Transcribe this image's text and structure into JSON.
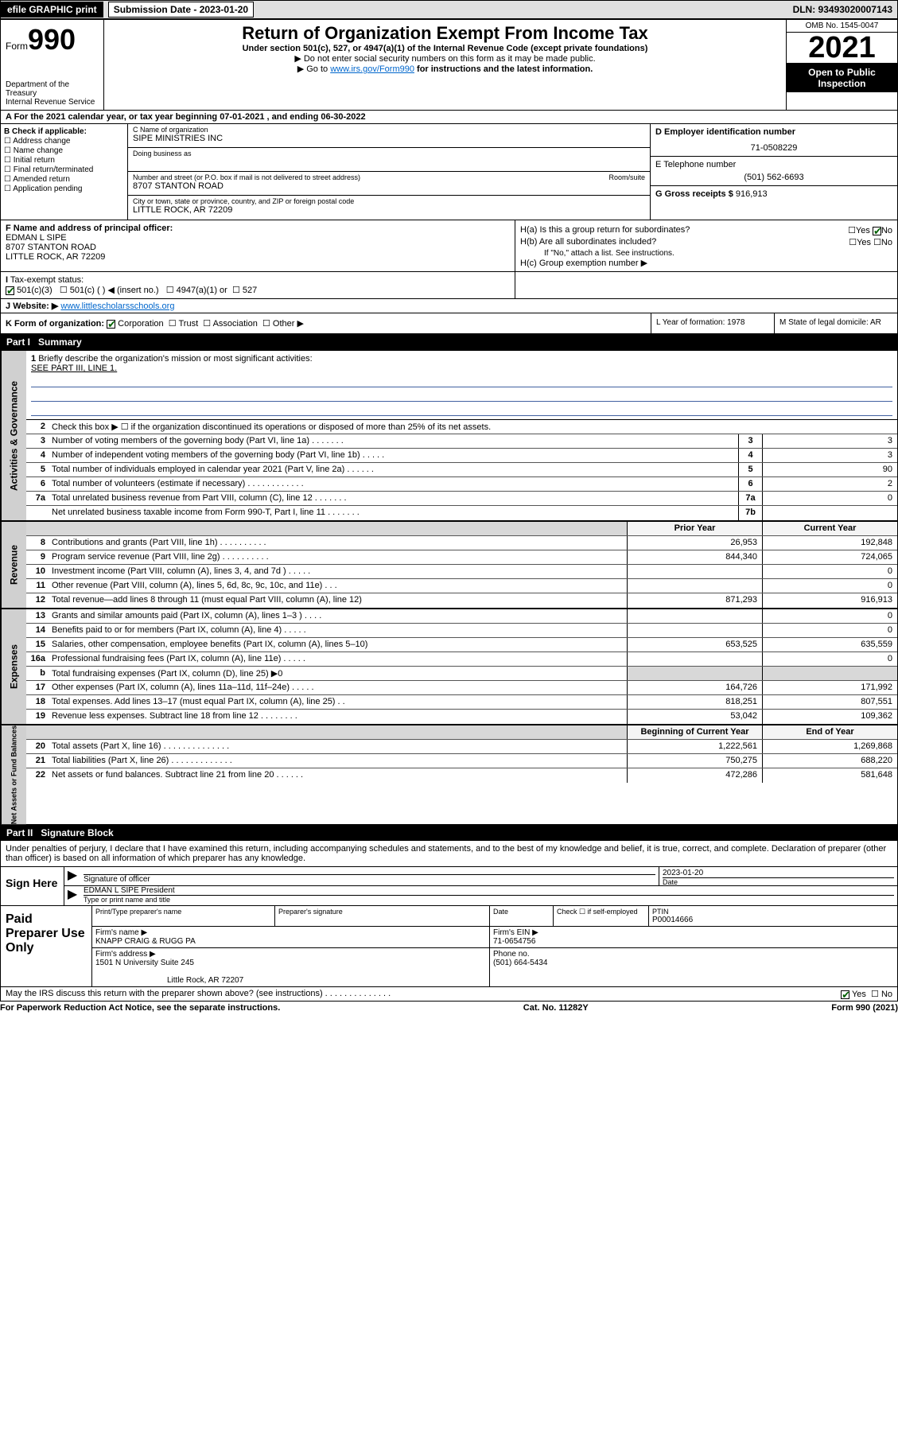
{
  "top_bar": {
    "efile": "efile GRAPHIC print",
    "submission": "Submission Date - 2023-01-20",
    "dln": "DLN: 93493020007143"
  },
  "header": {
    "form_prefix": "Form",
    "form_num": "990",
    "dept": "Department of the Treasury",
    "irs": "Internal Revenue Service",
    "title": "Return of Organization Exempt From Income Tax",
    "subtitle": "Under section 501(c), 527, or 4947(a)(1) of the Internal Revenue Code (except private foundations)",
    "instr1": "▶ Do not enter social security numbers on this form as it may be made public.",
    "instr2_pre": "▶ Go to ",
    "instr2_link": "www.irs.gov/Form990",
    "instr2_post": " for instructions and the latest information.",
    "omb": "OMB No. 1545-0047",
    "year": "2021",
    "open": "Open to Public Inspection"
  },
  "section_a": "A For the 2021 calendar year, or tax year beginning 07-01-2021   , and ending 06-30-2022",
  "col_b": {
    "label": "B Check if applicable:",
    "items": [
      "Address change",
      "Name change",
      "Initial return",
      "Final return/terminated",
      "Amended return",
      "Application pending"
    ]
  },
  "col_c": {
    "name_label": "C Name of organization",
    "name": "SIPE MINISTRIES INC",
    "dba_label": "Doing business as",
    "dba": "",
    "addr_label": "Number and street (or P.O. box if mail is not delivered to street address)",
    "room_label": "Room/suite",
    "addr": "8707 STANTON ROAD",
    "city_label": "City or town, state or province, country, and ZIP or foreign postal code",
    "city": "LITTLE ROCK, AR  72209"
  },
  "col_d": {
    "d_label": "D Employer identification number",
    "d_val": "71-0508229",
    "e_label": "E Telephone number",
    "e_val": "(501) 562-6693",
    "g_label": "G Gross receipts $",
    "g_val": "916,913"
  },
  "row_f": {
    "f_label": "F  Name and address of principal officer:",
    "f_name": "EDMAN L SIPE",
    "f_addr1": "8707 STANTON ROAD",
    "f_addr2": "LITTLE ROCK, AR  72209"
  },
  "row_h": {
    "ha": "H(a)  Is this a group return for subordinates?",
    "ha_no": "No",
    "hb": "H(b)  Are all subordinates included?",
    "hb_note": "If \"No,\" attach a list. See instructions.",
    "hc": "H(c)  Group exemption number ▶"
  },
  "row_i": {
    "i": "I",
    "label": "Tax-exempt status:",
    "opt1": "501(c)(3)",
    "opt2": "501(c) (    ) ◀ (insert no.)",
    "opt3": "4947(a)(1) or",
    "opt4": "527"
  },
  "row_j": {
    "j": "J",
    "label": "Website: ▶",
    "val": "www.littlescholarsschools.org"
  },
  "row_k": {
    "k": "K Form of organization:",
    "corp": "Corporation",
    "trust": "Trust",
    "assoc": "Association",
    "other": "Other ▶",
    "l": "L Year of formation: 1978",
    "m": "M State of legal domicile: AR"
  },
  "part1": {
    "title": "Part I",
    "name": "Summary",
    "q1": "Briefly describe the organization's mission or most significant activities:",
    "q1_val": "SEE PART III, LINE 1.",
    "q2": "Check this box ▶ ☐  if the organization discontinued its operations or disposed of more than 25% of its net assets.",
    "headers": {
      "prior": "Prior Year",
      "curr": "Current Year",
      "begin": "Beginning of Current Year",
      "end": "End of Year"
    },
    "rows_gov": [
      {
        "n": "3",
        "d": "Number of voting members of the governing body (Part VI, line 1a)   .   .   .   .   .   .   .",
        "box": "3",
        "v": "3"
      },
      {
        "n": "4",
        "d": "Number of independent voting members of the governing body (Part VI, line 1b)  .   .   .   .   .",
        "box": "4",
        "v": "3"
      },
      {
        "n": "5",
        "d": "Total number of individuals employed in calendar year 2021 (Part V, line 2a)   .   .   .   .   .   .",
        "box": "5",
        "v": "90"
      },
      {
        "n": "6",
        "d": "Total number of volunteers (estimate if necessary)   .   .   .   .   .   .   .   .   .   .   .   .",
        "box": "6",
        "v": "2"
      },
      {
        "n": "7a",
        "d": "Total unrelated business revenue from Part VIII, column (C), line 12   .   .   .   .   .   .   .",
        "box": "7a",
        "v": "0"
      },
      {
        "n": "",
        "d": "Net unrelated business taxable income from Form 990-T, Part I, line 11   .   .   .   .   .   .   .",
        "box": "7b",
        "v": ""
      }
    ],
    "rows_rev": [
      {
        "n": "8",
        "d": "Contributions and grants (Part VIII, line 1h)   .   .   .   .   .   .   .   .   .   .",
        "p": "26,953",
        "c": "192,848"
      },
      {
        "n": "9",
        "d": "Program service revenue (Part VIII, line 2g)   .   .   .   .   .   .   .   .   .   .",
        "p": "844,340",
        "c": "724,065"
      },
      {
        "n": "10",
        "d": "Investment income (Part VIII, column (A), lines 3, 4, and 7d )   .   .   .   .   .",
        "p": "",
        "c": "0"
      },
      {
        "n": "11",
        "d": "Other revenue (Part VIII, column (A), lines 5, 6d, 8c, 9c, 10c, and 11e)   .   .   .",
        "p": "",
        "c": "0"
      },
      {
        "n": "12",
        "d": "Total revenue—add lines 8 through 11 (must equal Part VIII, column (A), line 12)",
        "p": "871,293",
        "c": "916,913"
      }
    ],
    "rows_exp": [
      {
        "n": "13",
        "d": "Grants and similar amounts paid (Part IX, column (A), lines 1–3 )   .   .   .   .",
        "p": "",
        "c": "0"
      },
      {
        "n": "14",
        "d": "Benefits paid to or for members (Part IX, column (A), line 4)   .   .   .   .   .",
        "p": "",
        "c": "0"
      },
      {
        "n": "15",
        "d": "Salaries, other compensation, employee benefits (Part IX, column (A), lines 5–10)",
        "p": "653,525",
        "c": "635,559"
      },
      {
        "n": "16a",
        "d": "Professional fundraising fees (Part IX, column (A), line 11e)   .   .   .   .   .",
        "p": "",
        "c": "0"
      },
      {
        "n": "b",
        "d": "Total fundraising expenses (Part IX, column (D), line 25) ▶0",
        "p": "grey",
        "c": "grey"
      },
      {
        "n": "17",
        "d": "Other expenses (Part IX, column (A), lines 11a–11d, 11f–24e)   .   .   .   .   .",
        "p": "164,726",
        "c": "171,992"
      },
      {
        "n": "18",
        "d": "Total expenses. Add lines 13–17 (must equal Part IX, column (A), line 25)   .   .",
        "p": "818,251",
        "c": "807,551"
      },
      {
        "n": "19",
        "d": "Revenue less expenses. Subtract line 18 from line 12   .   .   .   .   .   .   .   .",
        "p": "53,042",
        "c": "109,362"
      }
    ],
    "rows_net": [
      {
        "n": "20",
        "d": "Total assets (Part X, line 16)   .   .   .   .   .   .   .   .   .   .   .   .   .   .",
        "p": "1,222,561",
        "c": "1,269,868"
      },
      {
        "n": "21",
        "d": "Total liabilities (Part X, line 26)   .   .   .   .   .   .   .   .   .   .   .   .   .",
        "p": "750,275",
        "c": "688,220"
      },
      {
        "n": "22",
        "d": "Net assets or fund balances. Subtract line 21 from line 20   .   .   .   .   .   .",
        "p": "472,286",
        "c": "581,648"
      }
    ]
  },
  "part2": {
    "title": "Part II",
    "name": "Signature Block",
    "decl": "Under penalties of perjury, I declare that I have examined this return, including accompanying schedules and statements, and to the best of my knowledge and belief, it is true, correct, and complete. Declaration of preparer (other than officer) is based on all information of which preparer has any knowledge.",
    "sign_here": "Sign Here",
    "sig_officer": "Signature of officer",
    "date": "Date",
    "date_val": "2023-01-20",
    "name_title": "EDMAN L SIPE President",
    "name_title_lab": "Type or print name and title",
    "paid": "Paid Preparer Use Only",
    "pp_name_lab": "Print/Type preparer's name",
    "pp_sig_lab": "Preparer's signature",
    "pp_date_lab": "Date",
    "pp_check": "Check ☐ if self-employed",
    "ptin_lab": "PTIN",
    "ptin": "P00014666",
    "firm_name_lab": "Firm's name   ▶",
    "firm_name": "KNAPP CRAIG & RUGG PA",
    "firm_ein_lab": "Firm's EIN ▶",
    "firm_ein": "71-0654756",
    "firm_addr_lab": "Firm's address ▶",
    "firm_addr1": "1501 N University Suite 245",
    "firm_addr2": "Little Rock, AR  72207",
    "phone_lab": "Phone no.",
    "phone": "(501) 664-5434",
    "discuss": "May the IRS discuss this return with the preparer shown above? (see instructions)   .   .   .   .   .   .   .   .   .   .   .   .   .   .",
    "yes": "Yes",
    "no": "No"
  },
  "footer": {
    "left": "For Paperwork Reduction Act Notice, see the separate instructions.",
    "mid": "Cat. No. 11282Y",
    "right": "Form 990 (2021)"
  }
}
